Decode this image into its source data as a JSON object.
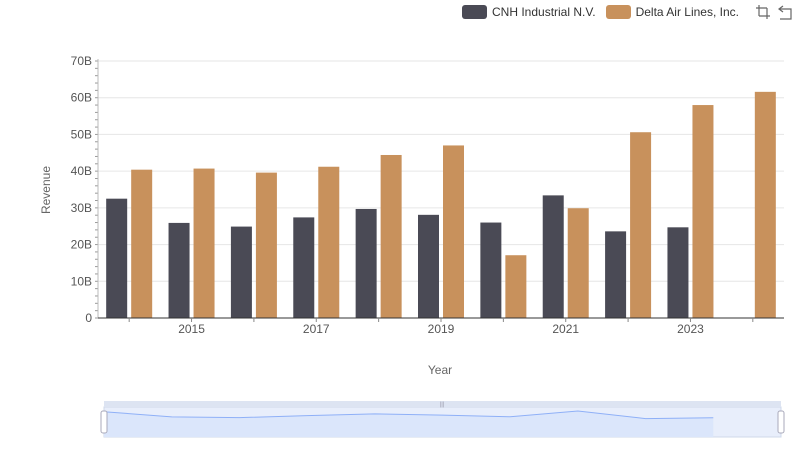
{
  "legend": {
    "series_a": "CNH Industrial N.V.",
    "series_b": "Delta Air Lines, Inc."
  },
  "toolbox": {
    "icons": [
      "zoom-icon",
      "restore-icon"
    ]
  },
  "colors": {
    "series_a": "#4a4a55",
    "series_b": "#c8915c",
    "grid": "#e6e6e6",
    "axis": "#333333",
    "zoom_fill": "#dbe6fb",
    "zoom_line": "#8fb0f7"
  },
  "chart_data": {
    "type": "bar",
    "xlabel": "Year",
    "ylabel": "Revenue",
    "ylim": [
      0,
      70000000000
    ],
    "y_ticks": [
      "0",
      "10B",
      "20B",
      "30B",
      "40B",
      "50B",
      "60B",
      "70B"
    ],
    "categories": [
      "2014",
      "2015",
      "2016",
      "2017",
      "2018",
      "2019",
      "2020",
      "2021",
      "2022",
      "2023",
      "2024"
    ],
    "x_tick_labels": [
      "2015",
      "2017",
      "2019",
      "2021",
      "2023"
    ],
    "series": [
      {
        "name": "CNH Industrial N.V.",
        "values": [
          32500000000,
          25900000000,
          24900000000,
          27400000000,
          29700000000,
          28100000000,
          26000000000,
          33400000000,
          23600000000,
          24700000000,
          null
        ]
      },
      {
        "name": "Delta Air Lines, Inc.",
        "values": [
          40400000000,
          40700000000,
          39600000000,
          41200000000,
          44400000000,
          47000000000,
          17100000000,
          29900000000,
          50600000000,
          58000000000,
          61600000000
        ]
      }
    ],
    "legend_position": "top-right",
    "grid": true,
    "data_zoom": true
  }
}
